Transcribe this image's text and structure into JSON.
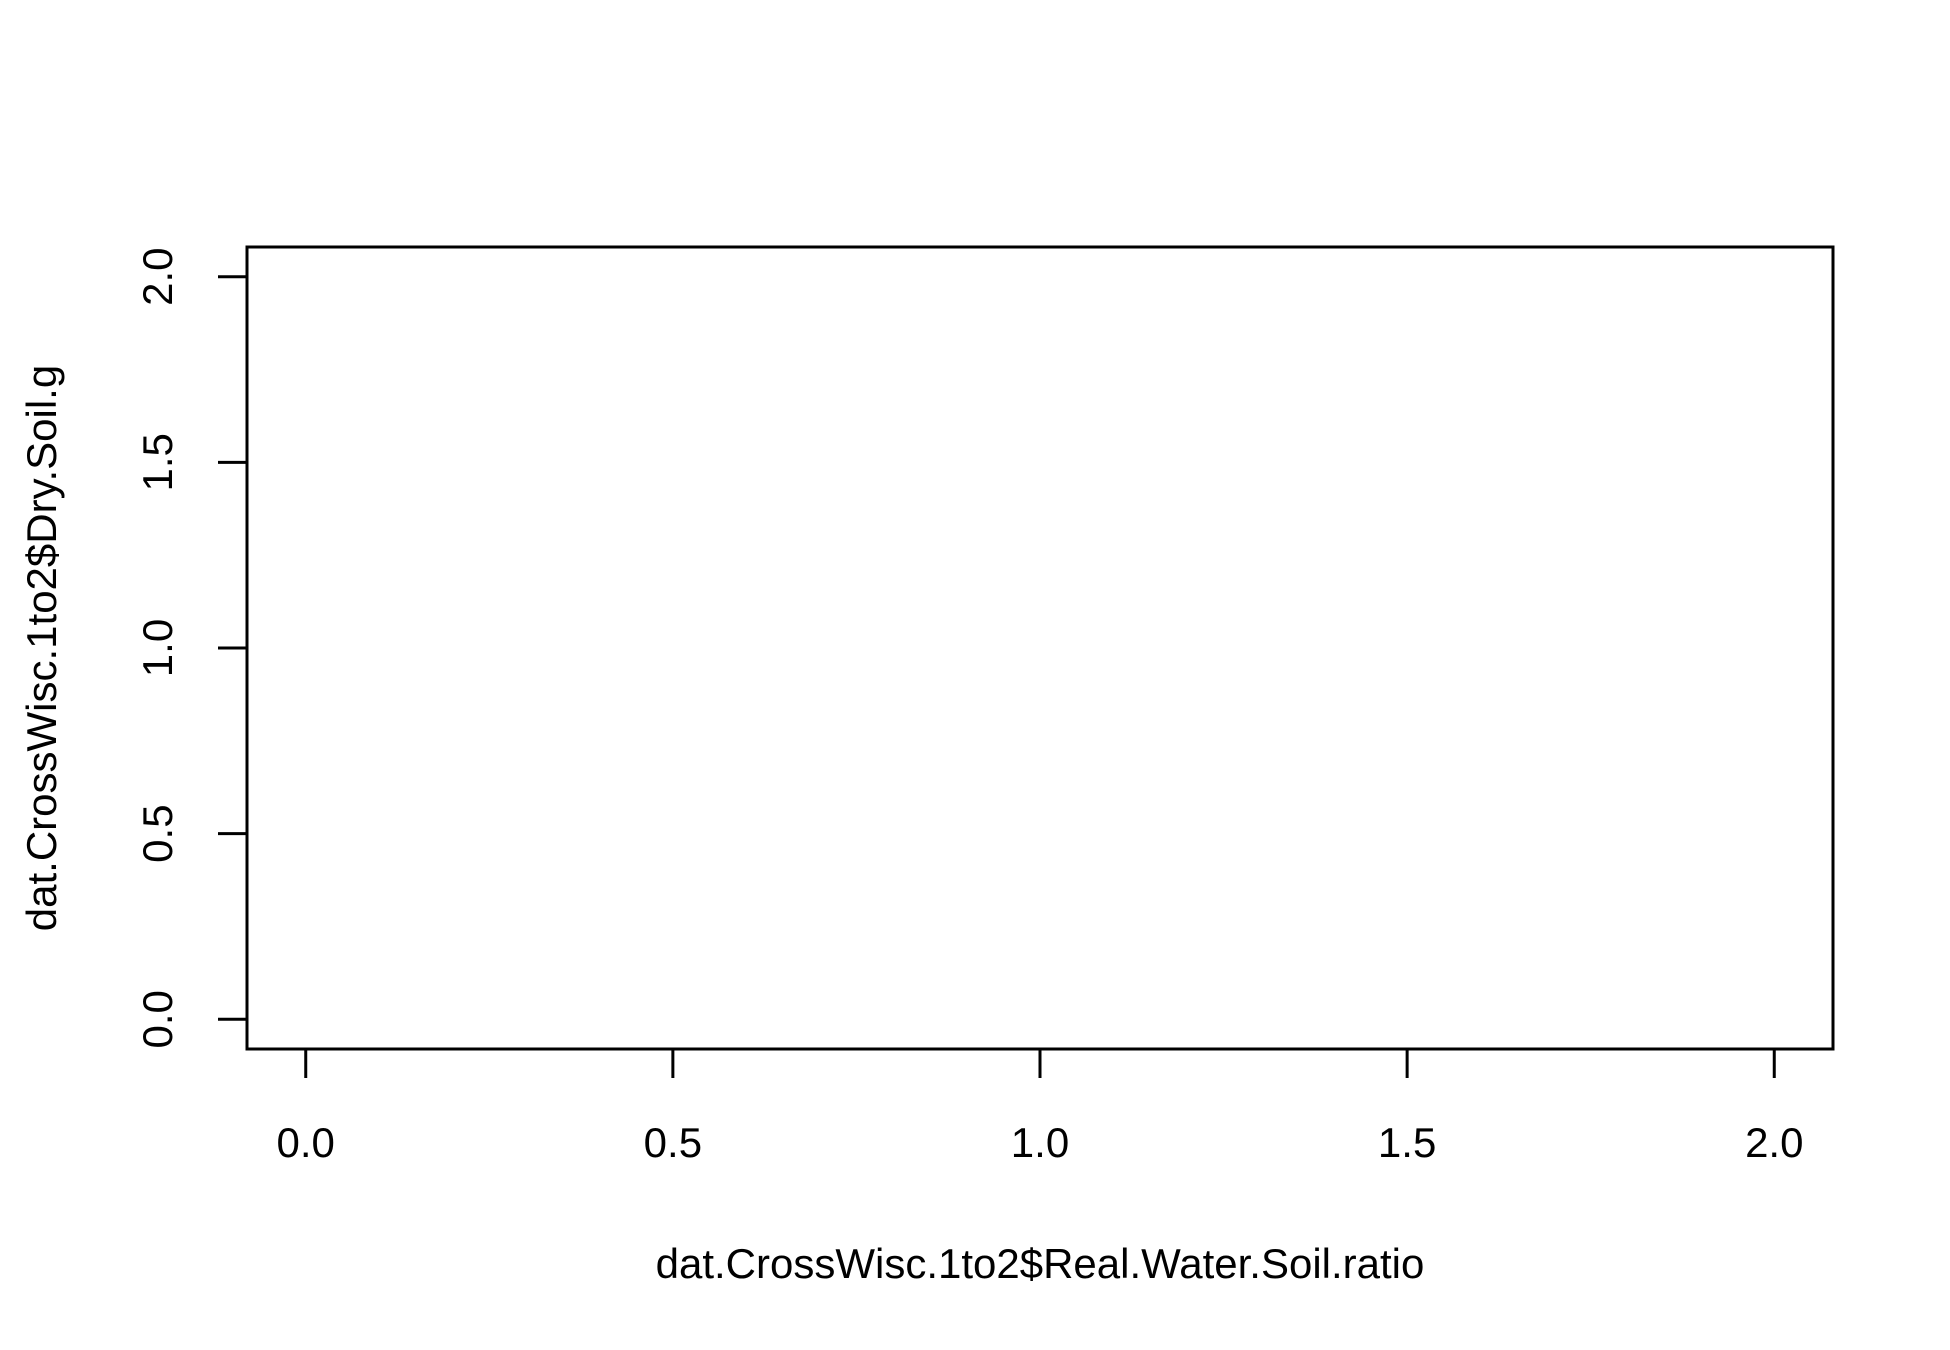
{
  "chart_data": {
    "type": "scatter",
    "title": "",
    "xlabel": "dat.CrossWisc.1to2$Real.Water.Soil.ratio",
    "ylabel": "dat.CrossWisc.1to2$Dry.Soil.g",
    "xlim": [
      -0.08,
      2.08
    ],
    "ylim": [
      -0.08,
      2.08
    ],
    "x_ticks": [
      0.0,
      0.5,
      1.0,
      1.5,
      2.0
    ],
    "x_tick_labels": [
      "0.0",
      "0.5",
      "1.0",
      "1.5",
      "2.0"
    ],
    "y_ticks": [
      0.0,
      0.5,
      1.0,
      1.5,
      2.0
    ],
    "y_tick_labels": [
      "0.0",
      "0.5",
      "1.0",
      "1.5",
      "2.0"
    ],
    "grid": false,
    "points": [],
    "colors": {
      "axis": "#000000",
      "background": "#ffffff"
    }
  }
}
